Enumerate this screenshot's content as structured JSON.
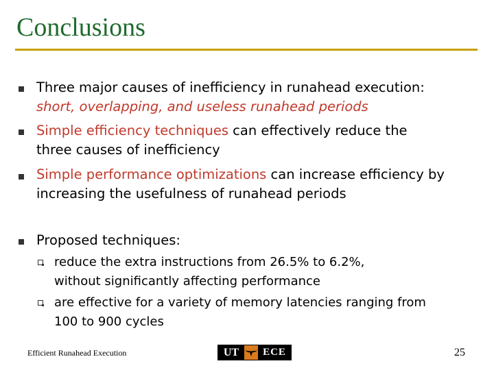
{
  "slide": {
    "title": "Conclusions",
    "bullets": [
      {
        "line1": "Three major causes of inefficiency in runahead execution:",
        "line2": "short, overlapping, and useless runahead periods"
      },
      {
        "highlight": "Simple efficiency techniques",
        "rest1": " can effectively reduce the",
        "line2": "three causes of inefficiency"
      },
      {
        "highlight": "Simple performance optimizations",
        "rest1": " can increase efficiency by",
        "line2": "increasing the usefulness of runahead periods"
      },
      {
        "line1": "Proposed techniques:",
        "subitems": [
          {
            "line1": "reduce the extra instructions from 26.5% to 6.2%,",
            "line2": "without significantly affecting performance"
          },
          {
            "line1": "are effective for a variety of memory latencies ranging from",
            "line2": "100 to 900 cycles"
          }
        ]
      }
    ]
  },
  "footer": {
    "left_text": "Efficient Runahead Execution",
    "logo": {
      "left": "UT",
      "right": "ECE"
    },
    "page_number": "25"
  },
  "colors": {
    "title": "#1f6b2e",
    "rule": "#c8a000",
    "highlight": "#c0392b",
    "logo_orange": "#d97a1e"
  }
}
